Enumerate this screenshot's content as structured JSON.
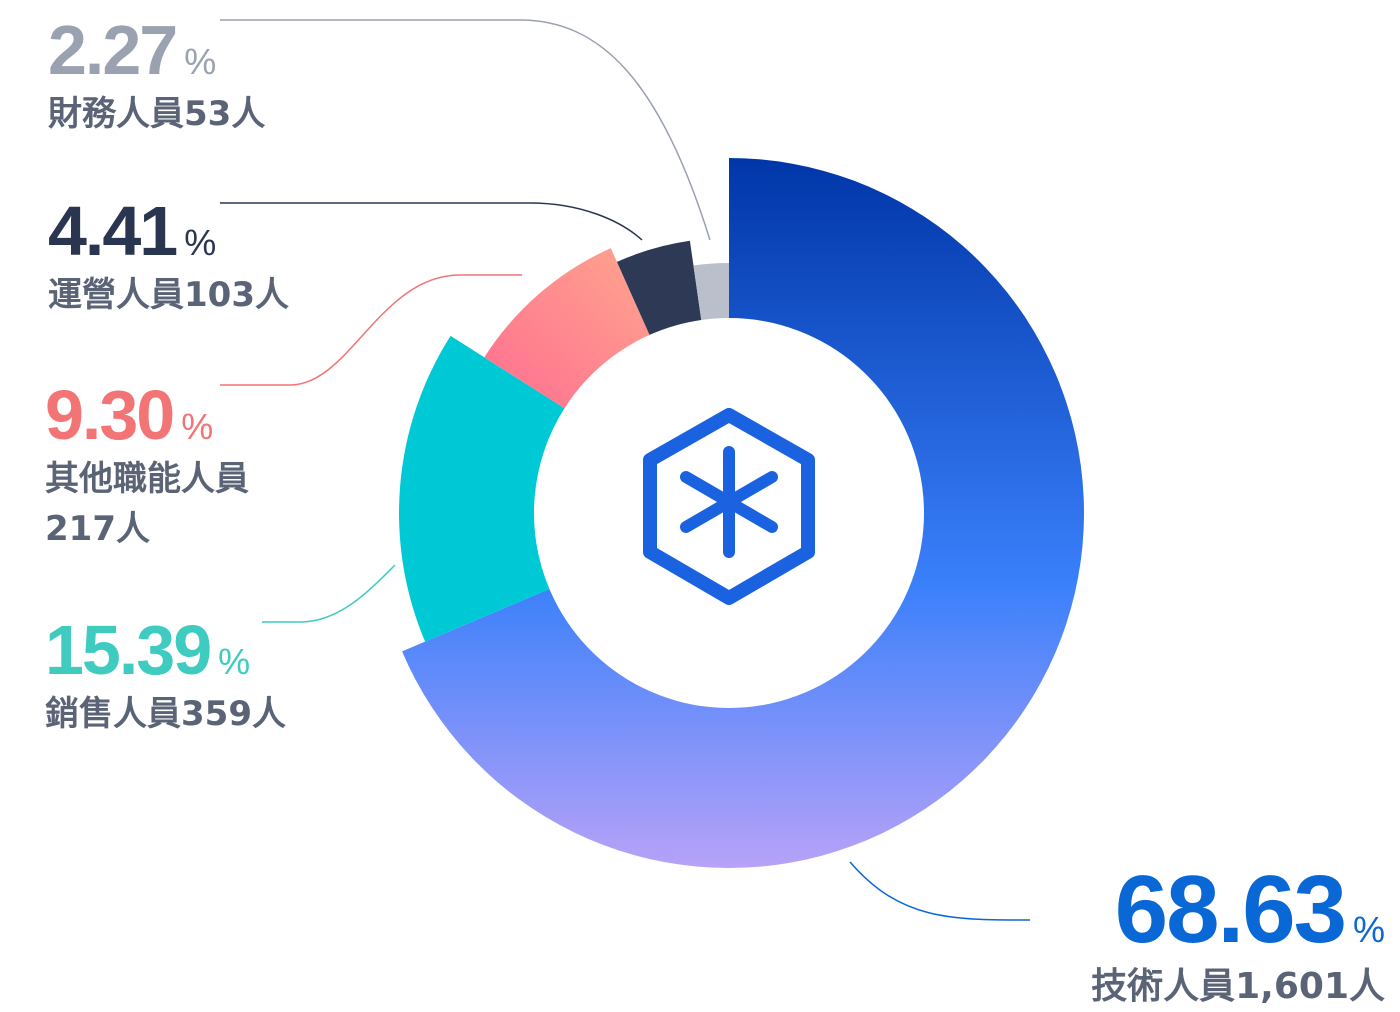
{
  "chart_data": {
    "type": "donut",
    "categories": [
      "技術人員1,601人",
      "銷售人員359人",
      "其他職能人員217人",
      "運營人員103人",
      "財務人員53人"
    ],
    "values": [
      68.63,
      15.39,
      9.3,
      4.41,
      2.27
    ],
    "value_labels": [
      "68.63",
      "15.39",
      "9.30",
      "4.41",
      "2.27"
    ],
    "unit": "%",
    "colors": [
      "#1463e0",
      "#00c9d6",
      "#ff8a93",
      "#2e3a55",
      "#b9c0cc"
    ],
    "text_colors": [
      "#0a67d6",
      "#3fcbbf",
      "#f27474",
      "#2a3550",
      "#9aa1b0"
    ]
  }
}
